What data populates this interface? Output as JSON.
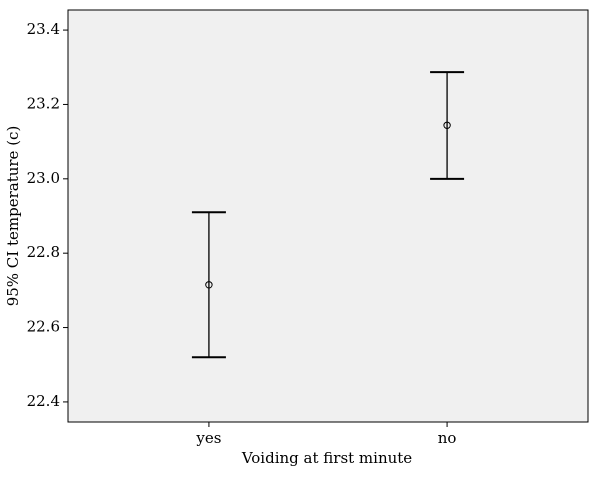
{
  "chart_data": {
    "type": "errorbar",
    "x_label": "Voiding at first minute",
    "y_label": "95% CI temperature (c)",
    "categories": [
      "yes",
      "no"
    ],
    "values": [
      22.715,
      23.144
    ],
    "lower": [
      22.52,
      23.0
    ],
    "upper": [
      22.91,
      23.287
    ],
    "color": "#000000",
    "background": "#f0f0f0",
    "ylim": [
      22.346,
      23.454
    ],
    "yticks": [
      22.4,
      22.6,
      22.8,
      {
        "value": 23,
        "label": "23.0"
      },
      23.2,
      23.4
    ]
  }
}
